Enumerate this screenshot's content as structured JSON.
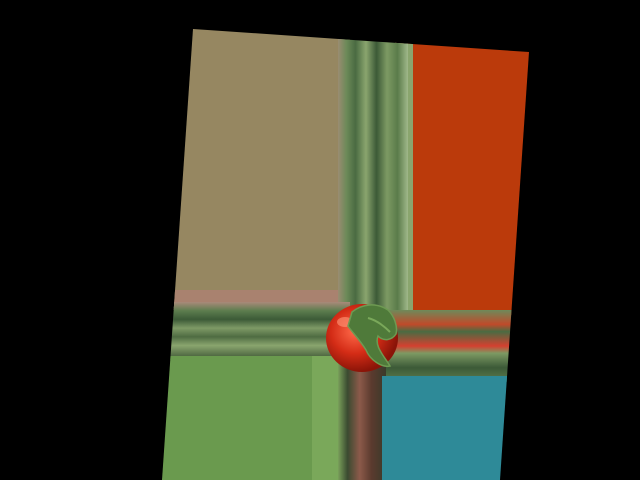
{
  "image": {
    "background_color": "#000000",
    "subject": "tomato-on-stretched-color-panels",
    "panels": {
      "top_left_color": "#968761",
      "top_right_color": "#bb3a0b",
      "bottom_left_color": "#6a9a4e",
      "bottom_right_color": "#2e8a98"
    },
    "stripe_colors": [
      "#5d7d4e",
      "#3c5a37",
      "#8aa56e",
      "#a98a7a",
      "#6e4a3a",
      "#c04a2a"
    ],
    "tomato": {
      "body_color": "#cc2a14",
      "highlight_color": "#ff8a6a",
      "stem_color": "#4f7a3a"
    }
  }
}
